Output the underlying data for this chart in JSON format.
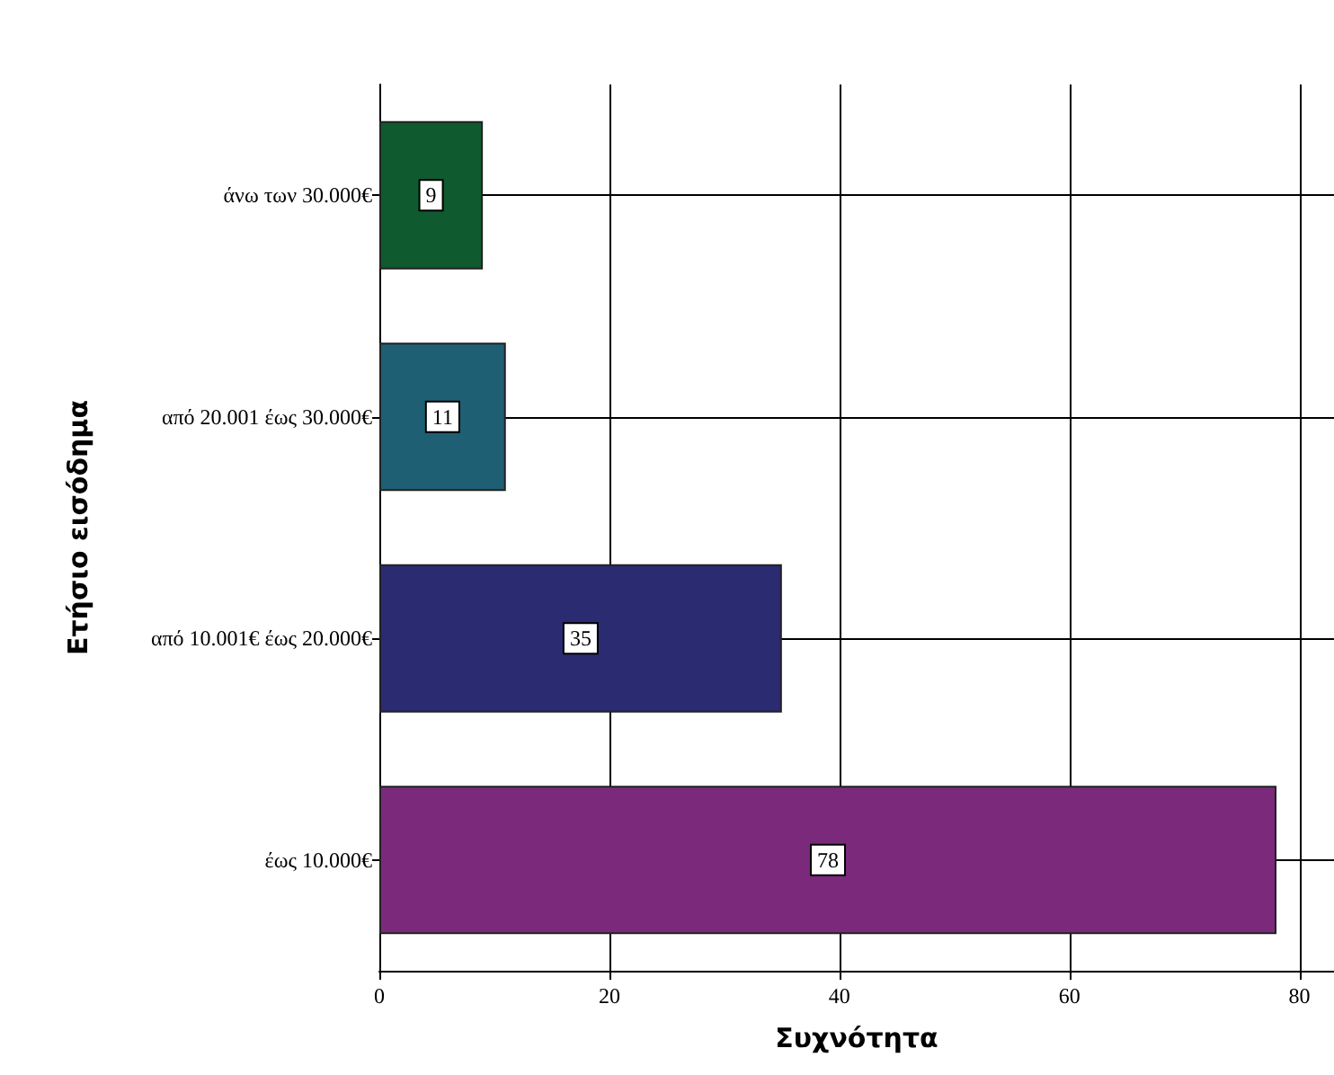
{
  "chart_data": {
    "type": "bar",
    "orientation": "horizontal",
    "xlabel": "Συχνότητα",
    "ylabel": "Ετήσιο εισόδημα",
    "categories": [
      "άνω των 30.000€",
      "από 20.001 έως 30.000€",
      "από 10.001€ έως 20.000€",
      "έως 10.000€"
    ],
    "values": [
      9,
      11,
      35,
      78
    ],
    "colors": [
      "#0f5a2e",
      "#1f5f74",
      "#2b2b72",
      "#7b2a7b"
    ],
    "xlim": [
      0,
      83
    ],
    "xticks": [
      0,
      20,
      40,
      60,
      80
    ],
    "grid": true,
    "data_labels": true
  }
}
